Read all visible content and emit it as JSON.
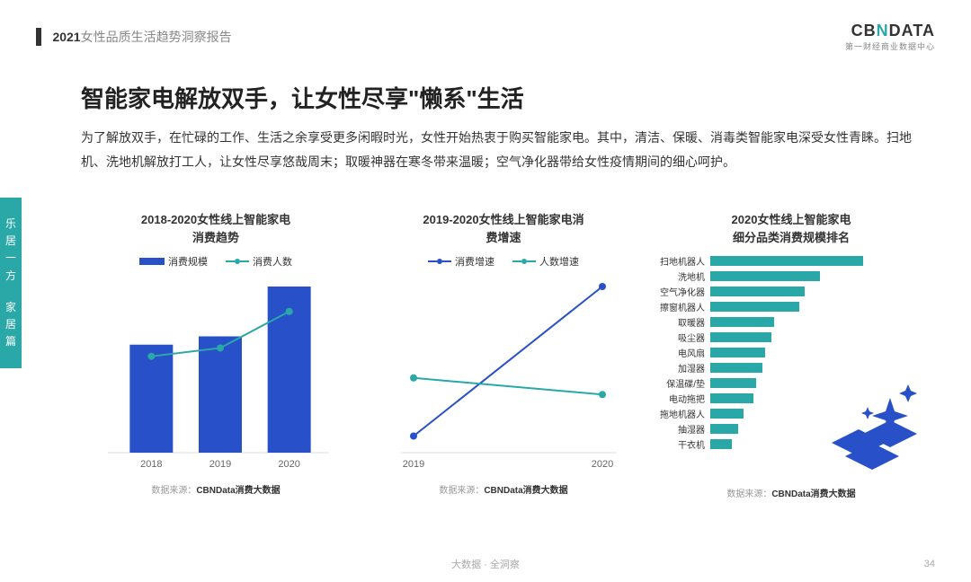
{
  "header": {
    "year": "2021",
    "report": "女性品质生活趋势洞察报告"
  },
  "logo": {
    "main_pre": "CB",
    "main_x": "N",
    "main_post": "DATA",
    "sub": "第一财经商业数据中心"
  },
  "sidebar": {
    "top": "乐居一方",
    "bottom": "家居篇"
  },
  "title": "智能家电解放双手，让女性尽享\"懒系\"生活",
  "desc": "为了解放双手，在忙碌的工作、生活之余享受更多闲暇时光，女性开始热衷于购买智能家电。其中，清洁、保暖、消毒类智能家电深受女性青睐。扫地机、洗地机解放打工人，让女性尽享悠哉周末；取暖神器在寒冬带来温暖；空气净化器带给女性疫情期间的细心呵护。",
  "chart1": {
    "title": "2018-2020女性线上智能家电\n消费趋势",
    "legend": [
      "消费规模",
      "消费人数"
    ],
    "categories": [
      "2018",
      "2019",
      "2020"
    ],
    "bar_values": [
      65,
      70,
      100
    ],
    "line_values": [
      58,
      63,
      85
    ],
    "bar_color": "#2850c8",
    "line_color": "#2aa8a8",
    "source_prefix": "数据来源：",
    "source": "CBNData消费大数据"
  },
  "chart2": {
    "title": "2019-2020女性线上智能家电消\n费增速",
    "legend": [
      "消费增速",
      "人数增速"
    ],
    "categories": [
      "2019",
      "2020"
    ],
    "series1": [
      10,
      100
    ],
    "series2": [
      45,
      35
    ],
    "color1": "#2850c8",
    "color2": "#2aa8a8",
    "source_prefix": "数据来源：",
    "source": "CBNData消费大数据"
  },
  "chart3": {
    "title": "2020女性线上智能家电\n细分品类消费规模排名",
    "labels": [
      "扫地机器人",
      "洗地机",
      "空气净化器",
      "擦窗机器人",
      "取暖器",
      "吸尘器",
      "电风扇",
      "加湿器",
      "保温碟/垫",
      "电动拖把",
      "拖地机器人",
      "抽湿器",
      "干衣机"
    ],
    "values": [
      100,
      72,
      62,
      58,
      42,
      40,
      36,
      34,
      30,
      28,
      22,
      18,
      14
    ],
    "bar_color": "#2aa8a8",
    "source_prefix": "数据来源：",
    "source": "CBNData消费大数据"
  },
  "footer": "大数据 · 全洞察",
  "page": "34",
  "colors": {
    "accent": "#2aa8a8",
    "primary": "#2850c8",
    "text": "#333",
    "muted": "#999"
  }
}
